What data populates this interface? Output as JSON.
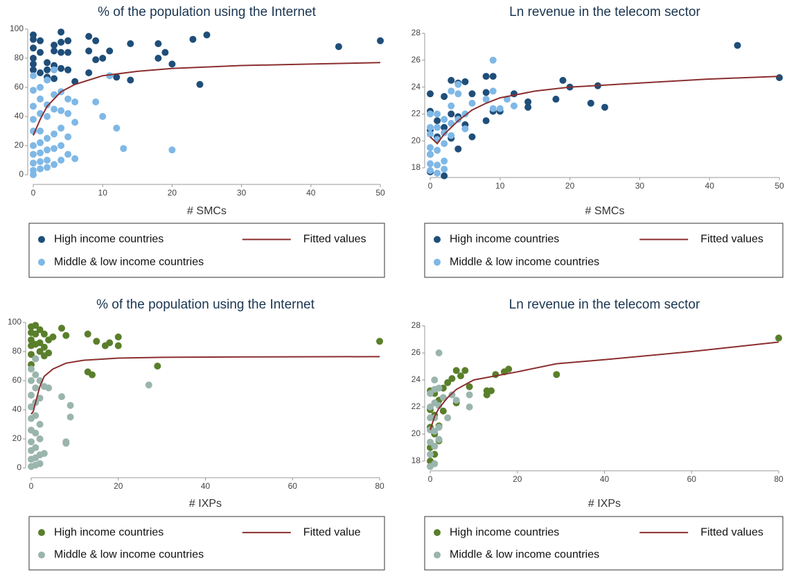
{
  "chart_data": [
    {
      "type": "scatter",
      "title": "% of the population using the Internet",
      "x_label": "# SMCs",
      "xlim": [
        0,
        50
      ],
      "xticks": [
        0,
        10,
        20,
        30,
        40,
        50
      ],
      "ylim": [
        0,
        100
      ],
      "yticks": [
        0,
        20,
        40,
        60,
        80,
        100
      ],
      "series": [
        {
          "name": "High income countries",
          "type": "scatter",
          "color": "#1f4e79",
          "x": [
            0,
            0,
            0,
            0,
            0,
            0,
            1,
            1,
            1,
            2,
            2,
            2,
            3,
            3,
            3,
            3,
            4,
            4,
            4,
            4,
            5,
            5,
            5,
            6,
            8,
            8,
            8,
            9,
            9,
            10,
            11,
            12,
            14,
            14,
            18,
            18,
            19,
            20,
            23,
            24,
            25,
            44,
            50
          ],
          "y": [
            96,
            93,
            87,
            80,
            76,
            72,
            92,
            84,
            70,
            77,
            72,
            67,
            89,
            85,
            75,
            66,
            98,
            91,
            84,
            73,
            92,
            84,
            72,
            64,
            95,
            85,
            70,
            92,
            79,
            80,
            85,
            67,
            90,
            65,
            90,
            80,
            84,
            76,
            93,
            62,
            96,
            88,
            92
          ]
        },
        {
          "name": "Middle & low income countries",
          "type": "scatter",
          "color": "#7fb8e6",
          "x": [
            0,
            0,
            0,
            0,
            0,
            0,
            0,
            0,
            0,
            0,
            1,
            1,
            1,
            1,
            1,
            1,
            1,
            1,
            2,
            2,
            2,
            2,
            2,
            2,
            2,
            3,
            3,
            3,
            3,
            3,
            3,
            4,
            4,
            4,
            4,
            4,
            5,
            5,
            5,
            5,
            6,
            6,
            6,
            9,
            10,
            11,
            12,
            13,
            20
          ],
          "y": [
            68,
            58,
            47,
            38,
            30,
            20,
            14,
            8,
            3,
            0,
            60,
            52,
            42,
            30,
            22,
            15,
            9,
            4,
            65,
            48,
            40,
            25,
            17,
            10,
            5,
            72,
            55,
            45,
            28,
            18,
            7,
            57,
            44,
            32,
            20,
            10,
            52,
            42,
            26,
            14,
            50,
            36,
            11,
            50,
            40,
            68,
            32,
            18,
            17
          ]
        },
        {
          "name": "Fitted values",
          "type": "line",
          "color": "#8b2e2e",
          "x": [
            0,
            1,
            2,
            4,
            6,
            8,
            10,
            15,
            20,
            30,
            40,
            50
          ],
          "y": [
            27,
            38,
            47,
            57,
            62,
            65,
            68,
            71,
            73,
            75,
            76,
            77
          ]
        }
      ]
    },
    {
      "type": "scatter",
      "title": "Ln revenue in the telecom sector",
      "x_label": "# SMCs",
      "xlim": [
        0,
        50
      ],
      "xticks": [
        0,
        10,
        20,
        30,
        40,
        50
      ],
      "ylim": [
        18,
        28
      ],
      "yticks": [
        18,
        20,
        22,
        24,
        26,
        28
      ],
      "series": [
        {
          "name": "High income countries",
          "type": "scatter",
          "color": "#1f4e79",
          "x": [
            0,
            0,
            0,
            0,
            0,
            1,
            1,
            2,
            2,
            2,
            3,
            3,
            3,
            4,
            4,
            4,
            5,
            5,
            6,
            6,
            8,
            8,
            8,
            9,
            9,
            10,
            12,
            14,
            14,
            18,
            19,
            20,
            23,
            24,
            25,
            44,
            50
          ],
          "y": [
            23.5,
            22.2,
            20.8,
            19,
            17.7,
            21.5,
            20.3,
            23.3,
            21,
            17.4,
            24.5,
            22,
            20.2,
            24.3,
            21.8,
            19.4,
            24.4,
            21.2,
            23.5,
            20.3,
            24.8,
            23.6,
            21.5,
            24.8,
            22.2,
            22.2,
            23.5,
            22.9,
            22.5,
            23.1,
            24.5,
            24,
            22.8,
            24.1,
            22.5,
            27.1,
            24.7
          ]
        },
        {
          "name": "Middle & low income countries",
          "type": "scatter",
          "color": "#7fb8e6",
          "x": [
            0,
            0,
            0,
            0,
            0,
            0,
            0,
            1,
            1,
            1,
            1,
            1,
            1,
            2,
            2,
            2,
            2,
            2,
            3,
            3,
            3,
            3,
            4,
            4,
            4,
            5,
            5,
            6,
            8,
            9,
            9,
            9,
            10,
            11,
            12
          ],
          "y": [
            22,
            21,
            20.5,
            19.5,
            19,
            18.3,
            17.8,
            22,
            21,
            20.1,
            19.3,
            18.2,
            17.6,
            21.6,
            20.6,
            19.8,
            18.5,
            17.9,
            23.7,
            22.6,
            21.3,
            20.4,
            24.2,
            23.5,
            21.6,
            22,
            20.9,
            22.8,
            23.1,
            26,
            23.7,
            22.4,
            22.4,
            23.1,
            22.6
          ]
        },
        {
          "name": "Fitted values",
          "type": "line",
          "color": "#8b2e2e",
          "x": [
            0,
            1,
            2,
            4,
            6,
            8,
            10,
            15,
            20,
            30,
            40,
            50
          ],
          "y": [
            20.3,
            19.8,
            20.5,
            21.5,
            22.3,
            22.8,
            23.2,
            23.7,
            24,
            24.3,
            24.6,
            24.8
          ]
        }
      ]
    },
    {
      "type": "scatter",
      "title": "% of the population using the Internet",
      "x_label": "# IXPs",
      "xlim": [
        0,
        80
      ],
      "xticks": [
        0,
        20,
        40,
        60,
        80
      ],
      "ylim": [
        0,
        100
      ],
      "yticks": [
        0,
        20,
        40,
        60,
        80,
        100
      ],
      "series": [
        {
          "name": "High income countries",
          "type": "scatter",
          "color": "#5a7f2b",
          "x": [
            0,
            0,
            0,
            0,
            0,
            0,
            1,
            1,
            1,
            1,
            2,
            2,
            2,
            3,
            3,
            3,
            4,
            4,
            5,
            7,
            8,
            13,
            13,
            14,
            15,
            17,
            18,
            20,
            20,
            29,
            80
          ],
          "y": [
            97,
            93,
            88,
            84,
            78,
            71,
            98,
            92,
            85,
            75,
            95,
            86,
            80,
            92,
            83,
            77,
            88,
            79,
            90,
            96,
            91,
            92,
            66,
            64,
            87,
            84,
            86,
            90,
            84,
            70,
            87
          ]
        },
        {
          "name": "Middle & low income countries",
          "type": "scatter",
          "color": "#9ab5ad",
          "x": [
            0,
            0,
            0,
            0,
            0,
            0,
            0,
            0,
            0,
            0,
            1,
            1,
            1,
            1,
            1,
            1,
            1,
            1,
            1,
            2,
            2,
            2,
            2,
            2,
            2,
            3,
            3,
            4,
            7,
            8,
            8,
            9,
            9,
            27
          ],
          "y": [
            68,
            60,
            50,
            42,
            34,
            26,
            18,
            12,
            6,
            1,
            75,
            64,
            55,
            45,
            36,
            24,
            14,
            7,
            2,
            60,
            48,
            30,
            20,
            9,
            3,
            56,
            10,
            55,
            49,
            18,
            17,
            43,
            35,
            57
          ]
        },
        {
          "name": "Fitted value",
          "type": "line",
          "color": "#8b2e2e",
          "x": [
            0,
            0.5,
            1,
            2,
            3,
            5,
            8,
            12,
            20,
            30,
            50,
            80
          ],
          "y": [
            37,
            39,
            45,
            56,
            63,
            68,
            72,
            74,
            75.5,
            76,
            76.3,
            76.5
          ]
        }
      ]
    },
    {
      "type": "scatter",
      "title": "Ln revenue in the telecom sector",
      "x_label": "# IXPs",
      "xlim": [
        0,
        80
      ],
      "xticks": [
        0,
        20,
        40,
        60,
        80
      ],
      "ylim": [
        18,
        28
      ],
      "yticks": [
        18,
        20,
        22,
        24,
        26,
        28
      ],
      "series": [
        {
          "name": "High income countries",
          "type": "scatter",
          "color": "#5a7f2b",
          "x": [
            0,
            0,
            0,
            0,
            0,
            1,
            1,
            1,
            1,
            2,
            2,
            2,
            3,
            3,
            4,
            5,
            6,
            6,
            7,
            8,
            9,
            13,
            13,
            14,
            15,
            17,
            18,
            29,
            80
          ],
          "y": [
            23.2,
            21.8,
            20.5,
            19,
            18,
            23,
            21.4,
            20,
            18.5,
            22.5,
            20.6,
            19.5,
            23.4,
            21.7,
            23.8,
            24.1,
            24.7,
            22.3,
            24.3,
            24.7,
            23.5,
            22.9,
            23.2,
            23.2,
            24.4,
            24.6,
            24.8,
            24.4,
            27.1
          ]
        },
        {
          "name": "Middle & low income countries",
          "type": "scatter",
          "color": "#9ab5ad",
          "x": [
            0,
            0,
            0,
            0,
            0,
            0,
            0,
            1,
            1,
            1,
            1,
            1,
            1,
            1,
            2,
            2,
            2,
            2,
            2,
            3,
            4,
            5,
            6,
            9,
            9
          ],
          "y": [
            23,
            22,
            21.2,
            20.3,
            19.4,
            18.5,
            17.6,
            24,
            23.3,
            22.3,
            21.2,
            20.2,
            19.1,
            17.8,
            26,
            23.4,
            22.1,
            20.5,
            19.6,
            22.7,
            21.2,
            22.9,
            22.5,
            22.9,
            22
          ]
        },
        {
          "name": "Fitted values",
          "type": "line",
          "color": "#8b2e2e",
          "x": [
            0,
            1,
            2,
            4,
            6,
            10,
            15,
            20,
            29,
            40,
            60,
            80
          ],
          "y": [
            20.3,
            21.3,
            21.9,
            22.7,
            23.3,
            24,
            24.3,
            24.6,
            25.2,
            25.5,
            26.1,
            26.8
          ]
        }
      ]
    }
  ]
}
